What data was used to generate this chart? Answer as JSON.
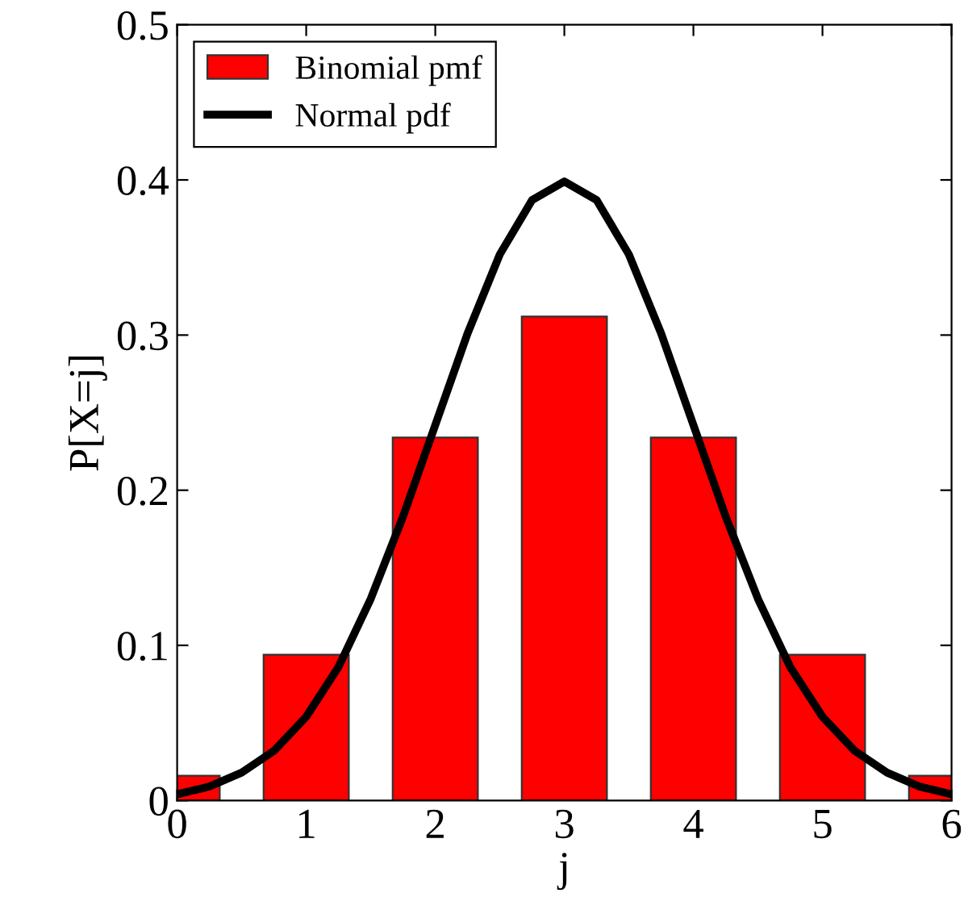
{
  "chart_data": {
    "type": "bar",
    "xlabel": "j",
    "ylabel": "P[X=j]",
    "xlim": [
      0,
      6
    ],
    "ylim": [
      0,
      0.5
    ],
    "xticks": [
      0,
      1,
      2,
      3,
      4,
      5,
      6
    ],
    "yticks": [
      0,
      0.1,
      0.2,
      0.3,
      0.4,
      0.5
    ],
    "grid": false,
    "legend": "top left",
    "series": [
      {
        "name": "Binomial pmf",
        "color": "#ff0000",
        "x": [
          0,
          1,
          2,
          3,
          4,
          5,
          6
        ],
        "values": [
          0.016,
          0.094,
          0.234,
          0.312,
          0.234,
          0.094,
          0.016
        ]
      },
      {
        "name": "Normal pdf",
        "type": "line",
        "color": "#000000",
        "x": [
          0,
          0.25,
          0.5,
          0.75,
          1,
          1.25,
          1.5,
          1.75,
          2,
          2.25,
          2.5,
          2.75,
          3,
          3.25,
          3.5,
          3.75,
          4,
          4.25,
          4.5,
          4.75,
          5,
          5.25,
          5.5,
          5.75,
          6
        ],
        "values": [
          0.004,
          0.009,
          0.018,
          0.032,
          0.054,
          0.086,
          0.13,
          0.183,
          0.242,
          0.301,
          0.352,
          0.387,
          0.399,
          0.387,
          0.352,
          0.301,
          0.242,
          0.183,
          0.13,
          0.086,
          0.054,
          0.032,
          0.018,
          0.009,
          0.004
        ]
      }
    ]
  }
}
